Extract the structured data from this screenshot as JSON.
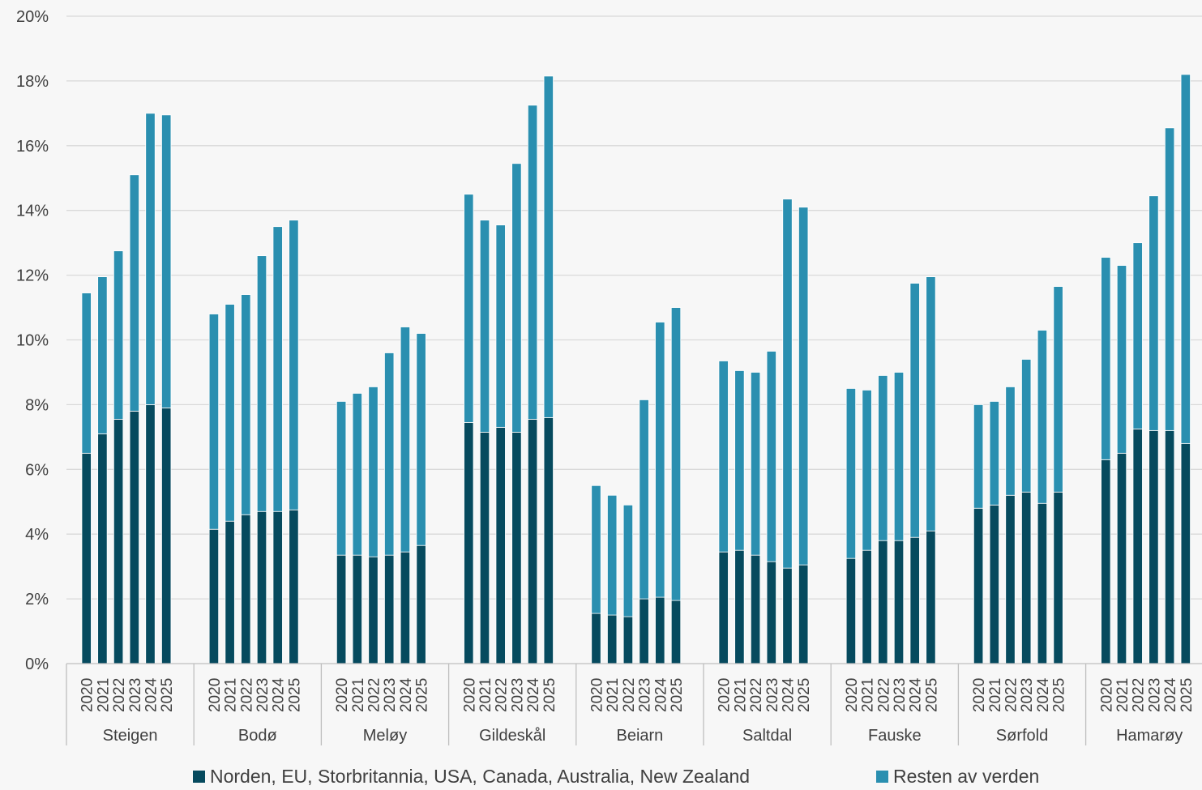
{
  "chart_data": {
    "type": "bar",
    "stacked": true,
    "title": "",
    "xlabel": "",
    "ylabel": "",
    "ylim": [
      0,
      20
    ],
    "y_ticks": [
      "0%",
      "2%",
      "4%",
      "6%",
      "8%",
      "10%",
      "12%",
      "14%",
      "16%",
      "18%",
      "20%"
    ],
    "grid": true,
    "legend_position": "bottom",
    "years": [
      "2020",
      "2021",
      "2022",
      "2023",
      "2024",
      "2025"
    ],
    "groups": [
      "Steigen",
      "Bodø",
      "Meløy",
      "Gildeskål",
      "Beiarn",
      "Saltdal",
      "Fauske",
      "Sørfold",
      "Hamarøy"
    ],
    "series": [
      {
        "name": "Norden, EU,  Storbritannia, USA, Canada, Australia, New Zealand",
        "color": "#064a5e",
        "values": [
          [
            6.5,
            7.1,
            7.55,
            7.8,
            8.0,
            7.9
          ],
          [
            4.15,
            4.4,
            4.6,
            4.7,
            4.7,
            4.75
          ],
          [
            3.35,
            3.35,
            3.3,
            3.35,
            3.45,
            3.65
          ],
          [
            7.45,
            7.15,
            7.3,
            7.15,
            7.55,
            7.6
          ],
          [
            1.55,
            1.5,
            1.45,
            2.0,
            2.05,
            1.95
          ],
          [
            3.45,
            3.5,
            3.35,
            3.15,
            2.95,
            3.05
          ],
          [
            3.25,
            3.5,
            3.8,
            3.8,
            3.9,
            4.1
          ],
          [
            4.8,
            4.9,
            5.2,
            5.3,
            4.95,
            5.3
          ],
          [
            6.3,
            6.5,
            7.25,
            7.2,
            7.2,
            6.8
          ]
        ]
      },
      {
        "name": "Resten av verden",
        "color": "#2a8fb0",
        "values": [
          [
            4.95,
            4.85,
            5.2,
            7.3,
            9.0,
            9.05
          ],
          [
            6.65,
            6.7,
            6.8,
            7.9,
            8.8,
            8.95
          ],
          [
            4.75,
            5.0,
            5.25,
            6.25,
            6.95,
            6.55
          ],
          [
            7.05,
            6.55,
            6.25,
            8.3,
            9.7,
            10.55
          ],
          [
            3.95,
            3.7,
            3.45,
            6.15,
            8.5,
            9.05
          ],
          [
            5.9,
            5.55,
            5.65,
            6.5,
            11.4,
            11.05
          ],
          [
            5.25,
            4.95,
            5.1,
            5.2,
            7.85,
            7.85
          ],
          [
            3.2,
            3.2,
            3.35,
            4.1,
            5.35,
            6.35
          ],
          [
            6.25,
            5.8,
            5.75,
            7.25,
            9.35,
            11.4
          ]
        ]
      }
    ]
  }
}
